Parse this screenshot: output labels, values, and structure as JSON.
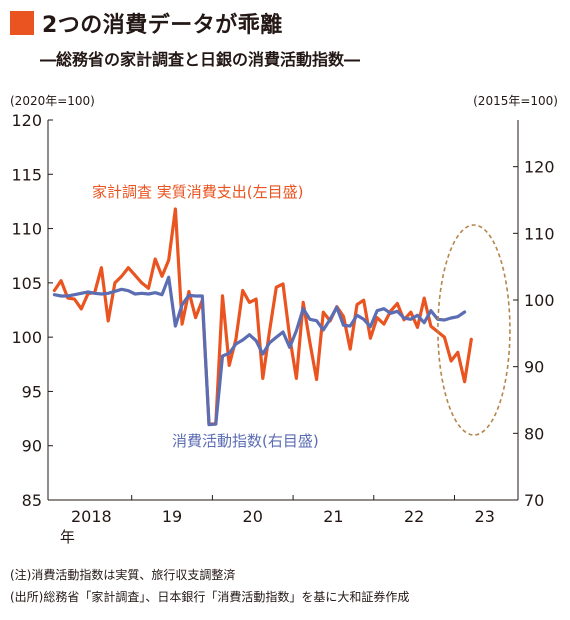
{
  "header": {
    "title": "2つの消費データが乖離",
    "subtitle": "―総務省の家計調査と日銀の消費活動指数―"
  },
  "units": {
    "left": "(2020年=100)",
    "right": "(2015年=100)"
  },
  "notes": {
    "note1": "(注)消費活動指数は実質、旅行収支調整済",
    "note2": "(出所)総務省「家計調査」、日本銀行「消費活動指数」を基に大和証券作成"
  },
  "colors": {
    "accent": "#ea5420",
    "household": "#ea5420",
    "consumption": "#5b6db3",
    "ellipse": "#b5854b",
    "axis": "#231815",
    "grid": "#9a9a9a"
  },
  "chart_data": {
    "type": "line",
    "x": [
      "2018-01",
      "2018-02",
      "2018-03",
      "2018-04",
      "2018-05",
      "2018-06",
      "2018-07",
      "2018-08",
      "2018-09",
      "2018-10",
      "2018-11",
      "2018-12",
      "2019-01",
      "2019-02",
      "2019-03",
      "2019-04",
      "2019-05",
      "2019-06",
      "2019-07",
      "2019-08",
      "2019-09",
      "2019-10",
      "2019-11",
      "2019-12",
      "2020-01",
      "2020-02",
      "2020-03",
      "2020-04",
      "2020-05",
      "2020-06",
      "2020-07",
      "2020-08",
      "2020-09",
      "2020-10",
      "2020-11",
      "2020-12",
      "2021-01",
      "2021-02",
      "2021-03",
      "2021-04",
      "2021-05",
      "2021-06",
      "2021-07",
      "2021-08",
      "2021-09",
      "2021-10",
      "2021-11",
      "2021-12",
      "2022-01",
      "2022-02",
      "2022-03",
      "2022-04",
      "2022-05",
      "2022-06",
      "2022-07",
      "2022-08",
      "2022-09",
      "2022-10",
      "2022-11",
      "2022-12",
      "2023-01",
      "2023-02",
      "2023-03",
      "2023-04",
      "2023-05",
      "2023-06",
      "2023-07",
      "2023-08",
      "2023-09"
    ],
    "x_tick_labels": [
      "2018",
      "19",
      "20",
      "21",
      "22",
      "23"
    ],
    "x_tick_sublabel": "年",
    "y_left": {
      "ylim": [
        85,
        120
      ],
      "ticks": [
        85,
        90,
        95,
        100,
        105,
        110,
        115,
        120
      ]
    },
    "y_right": {
      "ylim": [
        70,
        127
      ],
      "ticks": [
        70,
        80,
        90,
        100,
        110,
        120
      ]
    },
    "grid": false,
    "series": [
      {
        "name": "家計調査 実質消費支出(左目盛)",
        "axis": "left",
        "color": "#ea5420",
        "values": [
          104.3,
          105.2,
          103.6,
          103.5,
          102.6,
          104.0,
          104.1,
          106.4,
          101.5,
          105.0,
          105.6,
          106.4,
          105.7,
          105.0,
          104.5,
          107.2,
          105.6,
          107.1,
          111.8,
          101.2,
          104.2,
          101.8,
          103.4,
          92.0,
          92.0,
          103.8,
          97.4,
          99.8,
          104.3,
          103.2,
          103.5,
          96.2,
          100.6,
          104.6,
          104.9,
          100.0,
          96.2,
          103.2,
          99.5,
          96.1,
          102.3,
          101.5,
          102.8,
          101.9,
          98.9,
          103.0,
          103.4,
          99.9,
          101.8,
          101.2,
          102.4,
          103.1,
          101.6,
          102.3,
          100.9,
          103.6,
          101.0,
          100.5,
          100.0,
          97.8,
          98.6,
          95.9,
          99.8,
          null,
          null,
          null,
          null,
          null,
          null
        ],
        "values_trimmed_note": ""
      },
      {
        "name": "消費活動指数(右目盛)",
        "axis": "right",
        "color": "#5b6db3",
        "values": [
          100.8,
          100.6,
          100.6,
          100.8,
          101.0,
          101.2,
          101.0,
          100.9,
          101.0,
          101.3,
          101.6,
          101.4,
          100.9,
          101.0,
          100.9,
          101.1,
          100.8,
          103.4,
          96.1,
          99.3,
          100.7,
          100.6,
          100.6,
          81.3,
          81.4,
          91.6,
          92.0,
          93.4,
          94.0,
          94.8,
          93.9,
          91.9,
          93.6,
          94.4,
          95.2,
          92.9,
          95.4,
          98.7,
          97.1,
          96.9,
          95.5,
          97.1,
          98.9,
          96.2,
          96.1,
          97.7,
          97.1,
          96.0,
          98.4,
          98.7,
          98.0,
          98.3,
          97.3,
          97.1,
          97.7,
          96.6,
          98.4,
          97.1,
          97.0,
          97.3,
          97.5,
          98.2,
          null,
          null,
          null,
          null,
          null,
          null,
          null
        ]
      }
    ],
    "annotations": [
      {
        "text": "家計調査 実質消費支出(左目盛)",
        "color": "#ea5420"
      },
      {
        "text": "消費活動指数(右目盛)",
        "color": "#5b6db3"
      }
    ]
  }
}
